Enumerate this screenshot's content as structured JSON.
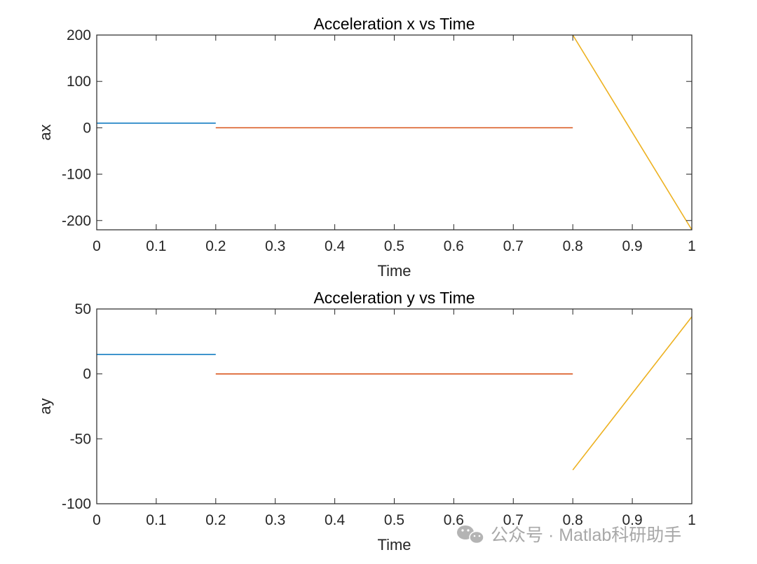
{
  "chart_data": [
    {
      "type": "line",
      "title": "Acceleration x vs Time",
      "xlabel": "Time",
      "ylabel": "ax",
      "xlim": [
        0,
        1
      ],
      "ylim": [
        -220,
        200
      ],
      "xticks": [
        0,
        0.1,
        0.2,
        0.3,
        0.4,
        0.5,
        0.6,
        0.7,
        0.8,
        0.9,
        1
      ],
      "xtick_labels": [
        "0",
        "0.1",
        "0.2",
        "0.3",
        "0.4",
        "0.5",
        "0.6",
        "0.7",
        "0.8",
        "0.9",
        "1"
      ],
      "yticks": [
        -200,
        -100,
        0,
        100,
        200
      ],
      "ytick_labels": [
        "-200",
        "-100",
        "0",
        "100",
        "200"
      ],
      "grid": false,
      "series": [
        {
          "color": "#0072BD",
          "x": [
            0,
            0.2
          ],
          "y": [
            10,
            10
          ]
        },
        {
          "color": "#D95319",
          "x": [
            0.2,
            0.8
          ],
          "y": [
            0,
            0
          ]
        },
        {
          "color": "#EDB120",
          "x": [
            0.8,
            1.0
          ],
          "y": [
            200,
            -220
          ]
        }
      ]
    },
    {
      "type": "line",
      "title": "Acceleration y vs Time",
      "xlabel": "Time",
      "ylabel": "ay",
      "xlim": [
        0,
        1
      ],
      "ylim": [
        -100,
        50
      ],
      "xticks": [
        0,
        0.1,
        0.2,
        0.3,
        0.4,
        0.5,
        0.6,
        0.7,
        0.8,
        0.9,
        1
      ],
      "xtick_labels": [
        "0",
        "0.1",
        "0.2",
        "0.3",
        "0.4",
        "0.5",
        "0.6",
        "0.7",
        "0.8",
        "0.9",
        "1"
      ],
      "yticks": [
        -100,
        -50,
        0,
        50
      ],
      "ytick_labels": [
        "-100",
        "-50",
        "0",
        "50"
      ],
      "grid": false,
      "series": [
        {
          "color": "#0072BD",
          "x": [
            0,
            0.2
          ],
          "y": [
            15,
            15
          ]
        },
        {
          "color": "#D95319",
          "x": [
            0.2,
            0.8
          ],
          "y": [
            0,
            0
          ]
        },
        {
          "color": "#EDB120",
          "x": [
            0.8,
            1.0
          ],
          "y": [
            -74,
            44
          ]
        }
      ]
    }
  ],
  "watermark": {
    "text": "公众号 · Matlab科研助手",
    "icon": "wechat-icon"
  }
}
